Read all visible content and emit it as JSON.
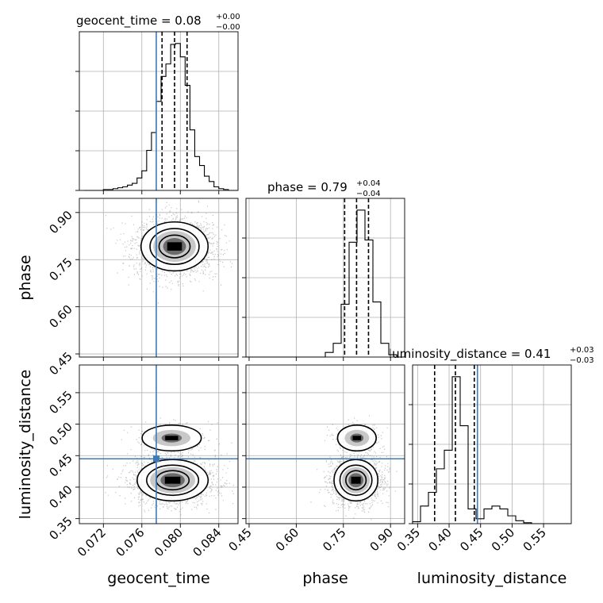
{
  "colors": {
    "truth": "#3d7ab8",
    "hist": "#000000",
    "grid": "#b0b0b0",
    "points": "#555555"
  },
  "chart_data": {
    "type": "corner",
    "parameters": [
      {
        "name": "geocent_time",
        "label": "geocent_time",
        "range": [
          0.0695,
          0.086
        ],
        "ticks": [
          "0.072",
          "0.076",
          "0.080",
          "0.084"
        ],
        "tick_values": [
          0.072,
          0.076,
          0.08,
          0.084
        ],
        "truth": 0.0775,
        "quantiles": [
          0.0781,
          0.0794,
          0.0807
        ],
        "title_main": "geocent_time = 0.08",
        "title_sup": "+0.00",
        "title_sub": "−0.00"
      },
      {
        "name": "phase",
        "label": "phase",
        "range": [
          0.44,
          0.945
        ],
        "ticks": [
          "0.45",
          "0.60",
          "0.75",
          "0.90"
        ],
        "tick_values": [
          0.45,
          0.6,
          0.75,
          0.9
        ],
        "truth": null,
        "quantiles": [
          0.754,
          0.792,
          0.83
        ],
        "title_main": "phase = 0.79",
        "title_sup": "+0.04",
        "title_sub": "−0.04"
      },
      {
        "name": "luminosity_distance",
        "label": "luminosity_distance",
        "range": [
          0.342,
          0.594
        ],
        "ticks": [
          "0.35",
          "0.40",
          "0.45",
          "0.50",
          "0.55"
        ],
        "tick_values": [
          0.35,
          0.4,
          0.45,
          0.5,
          0.55
        ],
        "truth": 0.445,
        "quantiles": [
          0.377,
          0.41,
          0.44
        ],
        "title_main": "luminosity_distance = 0.41",
        "title_sup": "+0.03",
        "title_sub": "−0.03"
      }
    ],
    "histograms": [
      {
        "param": "geocent_time",
        "bin_centers": [
          0.07025,
          0.07075,
          0.07125,
          0.07175,
          0.07225,
          0.07275,
          0.07325,
          0.07375,
          0.07425,
          0.07475,
          0.07525,
          0.07575,
          0.07625,
          0.07675,
          0.07725,
          0.07775,
          0.07825,
          0.07875,
          0.07925,
          0.07975,
          0.08025,
          0.08075,
          0.08125,
          0.08175,
          0.08225,
          0.08275,
          0.08325,
          0.08375,
          0.08425,
          0.08475,
          0.08525,
          0.08575
        ],
        "values": [
          0,
          0,
          0,
          0,
          1,
          1,
          2,
          3,
          4,
          6,
          8,
          14,
          22,
          45,
          65,
          100,
          128,
          142,
          164,
          165,
          150,
          118,
          68,
          38,
          28,
          16,
          10,
          4,
          2,
          1,
          0,
          0
        ]
      },
      {
        "param": "phase",
        "bin_centers": [
          0.4526,
          0.4779,
          0.5031,
          0.5284,
          0.5536,
          0.5789,
          0.6041,
          0.6294,
          0.6546,
          0.6799,
          0.7051,
          0.7304,
          0.7556,
          0.7809,
          0.8061,
          0.8314,
          0.8566,
          0.8819,
          0.9071,
          0.9324
        ],
        "values": [
          0,
          0,
          0,
          0,
          0,
          0,
          0,
          0,
          0,
          0,
          4,
          12,
          46,
          100,
          128,
          102,
          48,
          12,
          2,
          0
        ]
      },
      {
        "param": "luminosity_distance",
        "bin_centers": [
          0.3483,
          0.3609,
          0.3735,
          0.3861,
          0.3987,
          0.4113,
          0.4239,
          0.4365,
          0.4491,
          0.4617,
          0.4743,
          0.4869,
          0.4995,
          0.5121,
          0.5247,
          0.5373,
          0.5499,
          0.5625,
          0.5751,
          0.5877
        ],
        "values": [
          2,
          18,
          32,
          56,
          75,
          150,
          100,
          15,
          5,
          15,
          18,
          15,
          8,
          3,
          1,
          0,
          0,
          0,
          0,
          0
        ]
      }
    ],
    "pairs": [
      {
        "x": "geocent_time",
        "y": "phase",
        "modes": [
          {
            "x": 0.0794,
            "y": 0.792,
            "sx": 0.0017,
            "sy": 0.038,
            "weight": 1.0
          }
        ]
      },
      {
        "x": "geocent_time",
        "y": "luminosity_distance",
        "modes": [
          {
            "x": 0.0792,
            "y": 0.411,
            "sx": 0.0018,
            "sy": 0.016,
            "weight": 0.85
          },
          {
            "x": 0.0791,
            "y": 0.478,
            "sx": 0.0015,
            "sy": 0.01,
            "weight": 0.15
          }
        ]
      },
      {
        "x": "phase",
        "y": "luminosity_distance",
        "modes": [
          {
            "x": 0.79,
            "y": 0.411,
            "sx": 0.034,
            "sy": 0.016,
            "weight": 0.85
          },
          {
            "x": 0.793,
            "y": 0.478,
            "sx": 0.03,
            "sy": 0.01,
            "weight": 0.15
          }
        ]
      }
    ],
    "grid": true
  }
}
